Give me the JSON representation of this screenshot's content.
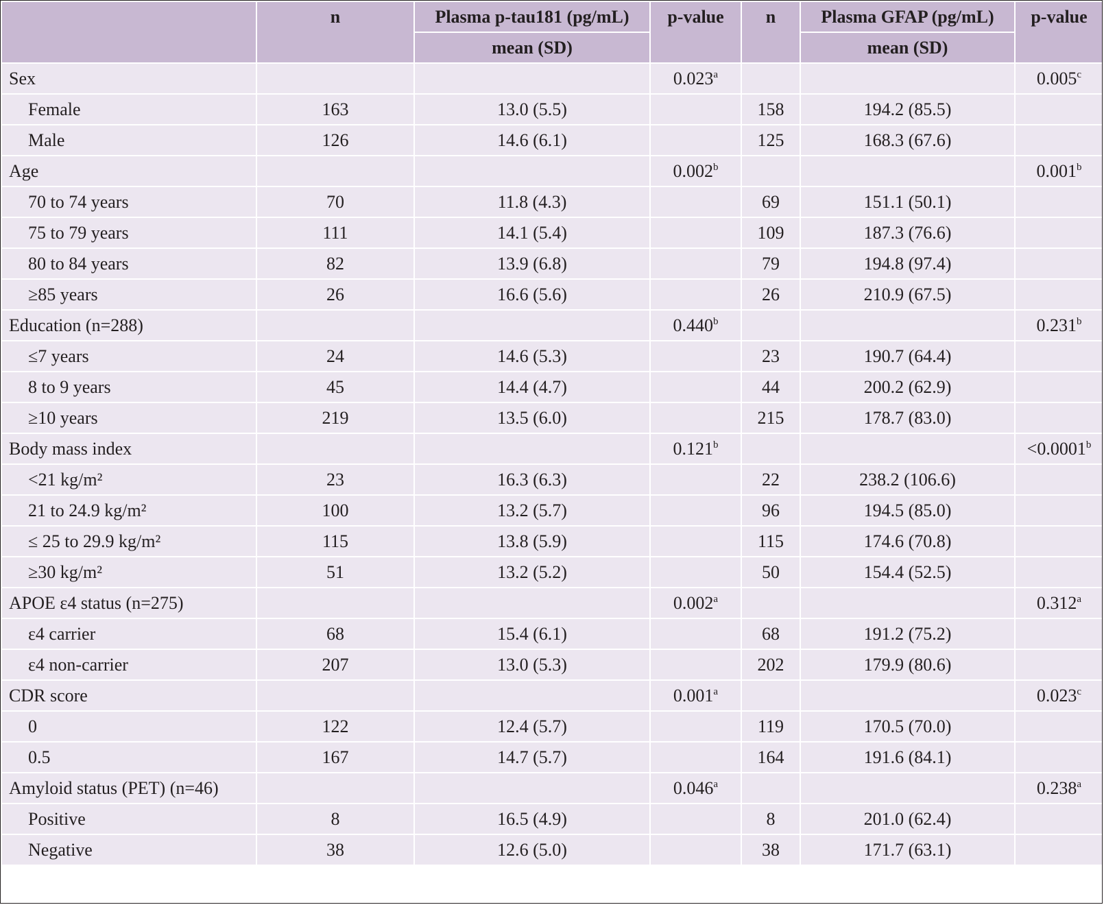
{
  "header": {
    "n1": "n",
    "ptau_title": "Plasma p-tau181 (pg/mL)",
    "ptau_sub": "mean (SD)",
    "p1": "p-value",
    "n2": "n",
    "gfap_title": "Plasma GFAP (pg/mL)",
    "gfap_sub": "mean (SD)",
    "p2": "p-value"
  },
  "rows": [
    {
      "type": "cat",
      "label": "Sex",
      "n1": "",
      "ptau": "",
      "p1": "0.023",
      "p1_sup": "a",
      "n2": "",
      "gfap": "",
      "p2": "0.005",
      "p2_sup": "c"
    },
    {
      "type": "sub",
      "label": "Female",
      "n1": "163",
      "ptau": "13.0 (5.5)",
      "p1": "",
      "p1_sup": "",
      "n2": "158",
      "gfap": "194.2 (85.5)",
      "p2": "",
      "p2_sup": ""
    },
    {
      "type": "sub",
      "label": "Male",
      "n1": "126",
      "ptau": "14.6 (6.1)",
      "p1": "",
      "p1_sup": "",
      "n2": "125",
      "gfap": "168.3 (67.6)",
      "p2": "",
      "p2_sup": ""
    },
    {
      "type": "cat",
      "label": "Age",
      "n1": "",
      "ptau": "",
      "p1": "0.002",
      "p1_sup": "b",
      "n2": "",
      "gfap": "",
      "p2": "0.001",
      "p2_sup": "b"
    },
    {
      "type": "sub",
      "label": "70 to 74 years",
      "n1": "70",
      "ptau": "11.8 (4.3)",
      "p1": "",
      "p1_sup": "",
      "n2": "69",
      "gfap": "151.1 (50.1)",
      "p2": "",
      "p2_sup": ""
    },
    {
      "type": "sub",
      "label": "75 to 79 years",
      "n1": "111",
      "ptau": "14.1 (5.4)",
      "p1": "",
      "p1_sup": "",
      "n2": "109",
      "gfap": "187.3 (76.6)",
      "p2": "",
      "p2_sup": ""
    },
    {
      "type": "sub",
      "label": "80 to 84 years",
      "n1": "82",
      "ptau": "13.9 (6.8)",
      "p1": "",
      "p1_sup": "",
      "n2": "79",
      "gfap": "194.8 (97.4)",
      "p2": "",
      "p2_sup": ""
    },
    {
      "type": "sub",
      "label": "≥85 years",
      "n1": "26",
      "ptau": "16.6 (5.6)",
      "p1": "",
      "p1_sup": "",
      "n2": "26",
      "gfap": "210.9 (67.5)",
      "p2": "",
      "p2_sup": ""
    },
    {
      "type": "cat",
      "label": "Education (n=288)",
      "n1": "",
      "ptau": "",
      "p1": "0.440",
      "p1_sup": "b",
      "n2": "",
      "gfap": "",
      "p2": "0.231",
      "p2_sup": "b"
    },
    {
      "type": "sub",
      "label": "≤7 years",
      "n1": "24",
      "ptau": "14.6 (5.3)",
      "p1": "",
      "p1_sup": "",
      "n2": "23",
      "gfap": "190.7 (64.4)",
      "p2": "",
      "p2_sup": ""
    },
    {
      "type": "sub",
      "label": "8 to 9 years",
      "n1": "45",
      "ptau": "14.4 (4.7)",
      "p1": "",
      "p1_sup": "",
      "n2": "44",
      "gfap": "200.2 (62.9)",
      "p2": "",
      "p2_sup": ""
    },
    {
      "type": "sub",
      "label": "≥10 years",
      "n1": "219",
      "ptau": "13.5 (6.0)",
      "p1": "",
      "p1_sup": "",
      "n2": "215",
      "gfap": "178.7 (83.0)",
      "p2": "",
      "p2_sup": ""
    },
    {
      "type": "cat",
      "label": "Body mass index",
      "n1": "",
      "ptau": "",
      "p1": "0.121",
      "p1_sup": "b",
      "n2": "",
      "gfap": "",
      "p2": "<0.0001",
      "p2_sup": "b"
    },
    {
      "type": "sub",
      "label": "<21 kg/m²",
      "n1": "23",
      "ptau": "16.3 (6.3)",
      "p1": "",
      "p1_sup": "",
      "n2": "22",
      "gfap": "238.2 (106.6)",
      "p2": "",
      "p2_sup": ""
    },
    {
      "type": "sub",
      "label": "21 to 24.9 kg/m²",
      "n1": "100",
      "ptau": "13.2 (5.7)",
      "p1": "",
      "p1_sup": "",
      "n2": "96",
      "gfap": "194.5 (85.0)",
      "p2": "",
      "p2_sup": ""
    },
    {
      "type": "sub",
      "label": "≤ 25 to 29.9 kg/m²",
      "n1": "115",
      "ptau": "13.8 (5.9)",
      "p1": "",
      "p1_sup": "",
      "n2": "115",
      "gfap": "174.6 (70.8)",
      "p2": "",
      "p2_sup": ""
    },
    {
      "type": "sub",
      "label": "≥30 kg/m²",
      "n1": "51",
      "ptau": "13.2 (5.2)",
      "p1": "",
      "p1_sup": "",
      "n2": "50",
      "gfap": "154.4 (52.5)",
      "p2": "",
      "p2_sup": ""
    },
    {
      "type": "cat",
      "label": "APOE ε4 status (n=275)",
      "n1": "",
      "ptau": "",
      "p1": "0.002",
      "p1_sup": "a",
      "n2": "",
      "gfap": "",
      "p2": "0.312",
      "p2_sup": "a"
    },
    {
      "type": "sub",
      "label": "ε4 carrier",
      "n1": "68",
      "ptau": "15.4 (6.1)",
      "p1": "",
      "p1_sup": "",
      "n2": "68",
      "gfap": "191.2 (75.2)",
      "p2": "",
      "p2_sup": ""
    },
    {
      "type": "sub",
      "label": "ε4 non-carrier",
      "n1": "207",
      "ptau": "13.0 (5.3)",
      "p1": "",
      "p1_sup": "",
      "n2": "202",
      "gfap": "179.9 (80.6)",
      "p2": "",
      "p2_sup": ""
    },
    {
      "type": "cat",
      "label": "CDR score",
      "n1": "",
      "ptau": "",
      "p1": "0.001",
      "p1_sup": "a",
      "n2": "",
      "gfap": "",
      "p2": "0.023",
      "p2_sup": "c"
    },
    {
      "type": "sub",
      "label": "0",
      "n1": "122",
      "ptau": "12.4 (5.7)",
      "p1": "",
      "p1_sup": "",
      "n2": "119",
      "gfap": "170.5 (70.0)",
      "p2": "",
      "p2_sup": ""
    },
    {
      "type": "sub",
      "label": "0.5",
      "n1": "167",
      "ptau": "14.7 (5.7)",
      "p1": "",
      "p1_sup": "",
      "n2": "164",
      "gfap": "191.6 (84.1)",
      "p2": "",
      "p2_sup": ""
    },
    {
      "type": "cat",
      "label": "Amyloid status (PET) (n=46)",
      "n1": "",
      "ptau": "",
      "p1": "0.046",
      "p1_sup": "a",
      "n2": "",
      "gfap": "",
      "p2": "0.238",
      "p2_sup": "a"
    },
    {
      "type": "sub",
      "label": "Positive",
      "n1": "8",
      "ptau": "16.5 (4.9)",
      "p1": "",
      "p1_sup": "",
      "n2": "8",
      "gfap": "201.0 (62.4)",
      "p2": "",
      "p2_sup": ""
    },
    {
      "type": "sub",
      "label": "Negative",
      "n1": "38",
      "ptau": "12.6 (5.0)",
      "p1": "",
      "p1_sup": "",
      "n2": "38",
      "gfap": "171.7 (63.1)",
      "p2": "",
      "p2_sup": ""
    }
  ],
  "colors": {
    "header_bg": "#c8b8d2",
    "row_bg": "#ece6f0",
    "text": "#231f20",
    "border": "#ffffff"
  }
}
